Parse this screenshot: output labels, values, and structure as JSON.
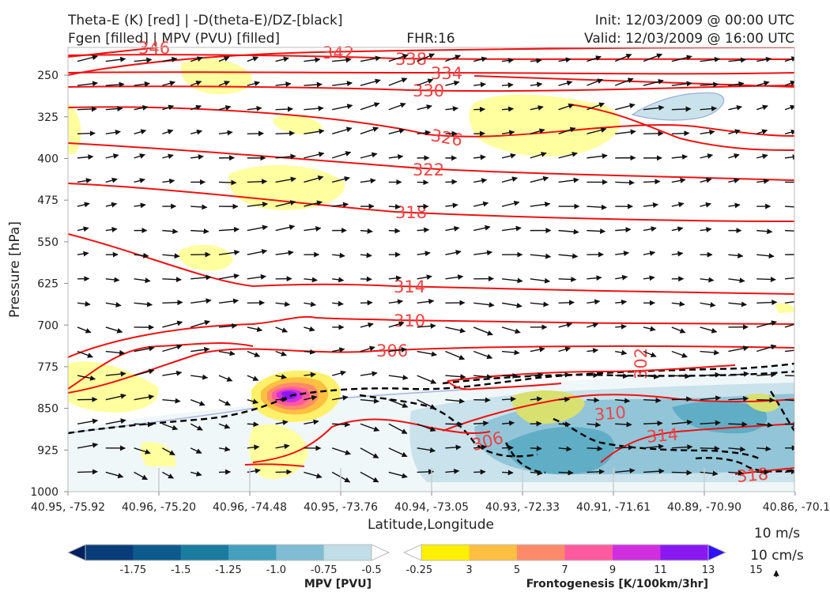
{
  "header": {
    "title_left_1": "Theta-E (K) [red] | -D(theta-E)/DZ-[black]",
    "title_left_2": "Fgen [filled] | MPV (PVU) [filled]",
    "title_center": "FHR:16",
    "title_right_1": "Init: 12/03/2009 @ 00:00 UTC",
    "title_right_2": "Valid: 12/03/2009 @ 16:00 UTC"
  },
  "chart_data": {
    "type": "contour",
    "xlabel": "Latitude,Longitude",
    "ylabel": "Pressure [hPa]",
    "ylim": [
      1000,
      200
    ],
    "y_ticks": [
      250,
      325,
      400,
      475,
      550,
      625,
      700,
      775,
      850,
      925,
      1000
    ],
    "x_ticks": [
      "40.95, -75.92",
      "40.96, -75.20",
      "40.96, -74.48",
      "40.95, -73.76",
      "40.94, -73.05",
      "40.93, -72.33",
      "40.91, -71.61",
      "40.89, -70.90",
      "40.86, -70.1"
    ],
    "theta_e_labels": [
      "346",
      "342",
      "338",
      "334",
      "330",
      "326",
      "322",
      "318",
      "314",
      "310",
      "306",
      "302",
      "310",
      "306",
      "314",
      "318"
    ],
    "theta_e_color": "#ff0000",
    "dtheta_dz_color": "#000000",
    "fgen_highlights": [
      {
        "x_index": 2.4,
        "p": 820,
        "fgen": 15,
        "level": "max"
      },
      {
        "x_index": 0.9,
        "p": 270,
        "fgen": 3
      },
      {
        "x_index": 5.0,
        "p": 350,
        "fgen": 3
      },
      {
        "x_index": 2.8,
        "p": 450,
        "fgen": 3
      }
    ],
    "mpv_regions": [
      {
        "x_from_index": 4.0,
        "x_to_index": 8.0,
        "p_top": 830,
        "p_bottom": 1000,
        "mpv_min": -1.0
      },
      {
        "x_index": 6.7,
        "p": 320,
        "mpv": -0.5
      }
    ],
    "wind_reference": {
      "horizontal": "10 m/s",
      "vertical": "10 cm/s"
    },
    "colorbars": [
      {
        "title": "MPV [PVU]",
        "labels": [
          "-1.75",
          "-1.5",
          "-1.25",
          "-1.0",
          "-0.75",
          "-0.5",
          "-0.25"
        ],
        "colors": [
          "#002060",
          "#093d7a",
          "#0d5a8c",
          "#1a7c9e",
          "#44a0bd",
          "#80bcd2",
          "#c0dde8",
          "#ffffff"
        ]
      },
      {
        "title": "Frontogenesis [K/100km/3hr]",
        "labels": [
          "3",
          "5",
          "7",
          "9",
          "11",
          "13",
          "15"
        ],
        "colors": [
          "#ffffff",
          "#fff000",
          "#ffbf40",
          "#ff8a6a",
          "#ff5aa0",
          "#d02ee0",
          "#8a18f0",
          "#3010f8"
        ]
      }
    ]
  }
}
